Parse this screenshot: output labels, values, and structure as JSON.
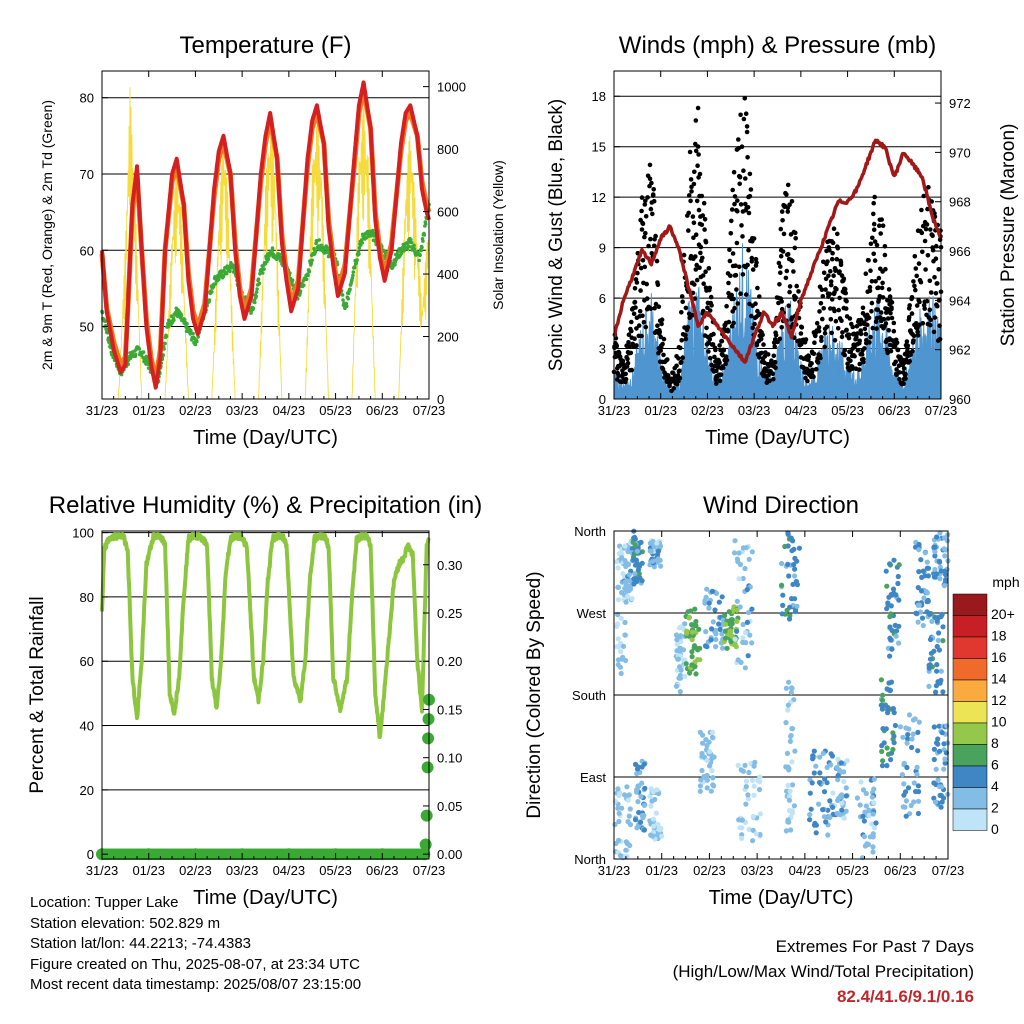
{
  "footer": {
    "location": "Location: Tupper Lake",
    "elevation": "Station elevation: 502.829 m",
    "latlon": "Station lat/lon: 44.2213; -74.4383",
    "created": "Figure created on Thu, 2025-08-07, at 23:34 UTC",
    "latest": "Most recent data timestamp: 2025/08/07 23:15:00",
    "extremes_title": "Extremes For Past 7 Days",
    "extremes_subtitle": "(High/Low/Max Wind/Total Precipitation)",
    "extremes_values": "82.4/41.6/9.1/0.16"
  },
  "colors": {
    "temp_2m": "#d42020",
    "temp_9m": "#f07820",
    "dewpoint": "#3aaa35",
    "solar": "#f5dc3c",
    "wind": "#4f95d0",
    "gust": "#000000",
    "pressure": "#a01818",
    "rh": "#8cc63f",
    "precip": "#3aaa35"
  },
  "chart_data": [
    {
      "type": "line",
      "title": "Temperature (F)",
      "xlabel": "Time (Day/UTC)",
      "ylabel": "2m & 9m T (Red, Orange) & 2m Td (Green)",
      "y2label": "Solar Insolation (Yellow)",
      "xticks": [
        "31/23",
        "01/23",
        "02/23",
        "03/23",
        "04/23",
        "05/23",
        "06/23",
        "07/23"
      ],
      "xlim": [
        0,
        7
      ],
      "ylim": [
        40.5,
        83.5
      ],
      "yticks": [
        50,
        60,
        70,
        80
      ],
      "y2lim": [
        0,
        1050
      ],
      "y2ticks": [
        0,
        200,
        400,
        600,
        800,
        1000
      ],
      "series": [
        {
          "name": "2m T",
          "x": [
            0,
            0.1,
            0.25,
            0.4,
            0.5,
            0.55,
            0.65,
            0.75,
            0.85,
            0.95,
            1.05,
            1.15,
            1.25,
            1.35,
            1.5,
            1.6,
            1.75,
            1.85,
            1.95,
            2.05,
            2.2,
            2.4,
            2.5,
            2.6,
            2.75,
            2.85,
            2.95,
            3.05,
            3.2,
            3.4,
            3.5,
            3.6,
            3.75,
            3.85,
            3.95,
            4.05,
            4.2,
            4.4,
            4.5,
            4.6,
            4.75,
            4.85,
            4.95,
            5.05,
            5.2,
            5.4,
            5.5,
            5.6,
            5.75,
            5.85,
            5.95,
            6.05,
            6.2,
            6.4,
            6.5,
            6.6,
            6.75,
            6.85,
            6.95,
            7.0
          ],
          "values": [
            60,
            52,
            47,
            44,
            45,
            52,
            66,
            71,
            60,
            50,
            45,
            42,
            46,
            60,
            70,
            72,
            66,
            56,
            51,
            49,
            52,
            68,
            73,
            75,
            70,
            60,
            54,
            51,
            54,
            70,
            75,
            78,
            72,
            61,
            56,
            52,
            55,
            72,
            77,
            79,
            74,
            63,
            58,
            54,
            57,
            72,
            79,
            82,
            76,
            64,
            59,
            56,
            60,
            74,
            78,
            79,
            75,
            68,
            65,
            64
          ]
        },
        {
          "name": "9m T",
          "x": [
            0,
            0.1,
            0.25,
            0.4,
            0.5,
            0.55,
            0.65,
            0.75,
            0.85,
            0.95,
            1.05,
            1.15,
            1.25,
            1.35,
            1.5,
            1.6,
            1.75,
            1.85,
            1.95,
            2.05,
            2.2,
            2.4,
            2.5,
            2.6,
            2.75,
            2.85,
            2.95,
            3.05,
            3.2,
            3.4,
            3.5,
            3.6,
            3.75,
            3.85,
            3.95,
            4.05,
            4.2,
            4.4,
            4.5,
            4.6,
            4.75,
            4.85,
            4.95,
            5.05,
            5.2,
            5.4,
            5.5,
            5.6,
            5.75,
            5.85,
            5.95,
            6.05,
            6.2,
            6.4,
            6.5,
            6.6,
            6.75,
            6.85,
            6.95,
            7.0
          ],
          "values": [
            59.5,
            52.5,
            48,
            45,
            46,
            52,
            65,
            70,
            60,
            51,
            46,
            43,
            47,
            60,
            69,
            71,
            66,
            57,
            52,
            50,
            53,
            67,
            72,
            74,
            70,
            61,
            55,
            52,
            55,
            69,
            74,
            77,
            72,
            62,
            57,
            53,
            56,
            71,
            76,
            78,
            74,
            64,
            59,
            55,
            58,
            71,
            78,
            81,
            76,
            65,
            60,
            57,
            61,
            73,
            77,
            78,
            75,
            69,
            66,
            65
          ]
        },
        {
          "name": "2m Td",
          "x": [
            0,
            0.2,
            0.4,
            0.6,
            0.8,
            1.0,
            1.2,
            1.4,
            1.6,
            1.8,
            2.0,
            2.2,
            2.4,
            2.6,
            2.8,
            3.0,
            3.2,
            3.4,
            3.6,
            3.8,
            4.0,
            4.2,
            4.4,
            4.6,
            4.8,
            5.0,
            5.2,
            5.4,
            5.6,
            5.8,
            6.0,
            6.2,
            6.4,
            6.6,
            6.8,
            7.0
          ],
          "values": [
            52,
            47,
            44,
            46,
            47,
            45,
            43,
            50,
            52,
            50,
            48,
            52,
            56,
            57,
            58,
            54,
            52,
            57,
            60,
            59,
            57,
            54,
            57,
            61,
            60,
            59,
            52,
            58,
            62,
            62,
            60,
            58,
            60,
            61,
            59,
            66
          ]
        },
        {
          "name": "Solar Insolation",
          "x": [
            0,
            0.35,
            0.5,
            0.6,
            0.7,
            0.85,
            1.35,
            1.5,
            1.6,
            1.7,
            1.85,
            2.35,
            2.5,
            2.6,
            2.7,
            2.85,
            3.35,
            3.5,
            3.6,
            3.7,
            3.85,
            4.35,
            4.5,
            4.6,
            4.7,
            4.85,
            5.35,
            5.5,
            5.6,
            5.7,
            5.85,
            6.35,
            6.5,
            6.6,
            6.7,
            6.85,
            7.0
          ],
          "values": [
            0,
            0,
            500,
            1000,
            700,
            0,
            0,
            550,
            780,
            600,
            0,
            0,
            600,
            850,
            650,
            0,
            0,
            700,
            900,
            750,
            0,
            0,
            750,
            920,
            760,
            0,
            0,
            800,
            960,
            780,
            0,
            0,
            700,
            880,
            650,
            300,
            600
          ]
        }
      ]
    },
    {
      "type": "scatter",
      "title": "Winds (mph) & Pressure (mb)",
      "xlabel": "Time (Day/UTC)",
      "ylabel": "Sonic Wind & Gust (Blue, Black)",
      "y2label": "Station Pressure (Maroon)",
      "xticks": [
        "31/23",
        "01/23",
        "02/23",
        "03/23",
        "04/23",
        "05/23",
        "06/23",
        "07/23"
      ],
      "xlim": [
        0,
        7
      ],
      "ylim": [
        0,
        19.5
      ],
      "yticks": [
        0,
        3,
        6,
        9,
        12,
        15,
        18
      ],
      "y2lim": [
        960,
        973.3
      ],
      "y2ticks": [
        960,
        962,
        964,
        966,
        968,
        970,
        972
      ],
      "series": [
        {
          "name": "Sonic Wind",
          "x": [
            0,
            0.2,
            0.4,
            0.6,
            0.8,
            1.0,
            1.2,
            1.4,
            1.6,
            1.8,
            2.0,
            2.2,
            2.4,
            2.6,
            2.8,
            3.0,
            3.2,
            3.4,
            3.6,
            3.8,
            4.0,
            4.2,
            4.4,
            4.6,
            4.8,
            5.0,
            5.2,
            5.4,
            5.6,
            5.8,
            6.0,
            6.2,
            6.4,
            6.6,
            6.8,
            7.0
          ],
          "values": [
            1.5,
            1.0,
            1.5,
            4.0,
            5.5,
            2.0,
            0.5,
            1.0,
            5.0,
            6.0,
            3.0,
            1.0,
            2.0,
            6.0,
            8.5,
            4.0,
            1.5,
            1.0,
            4.5,
            5.0,
            2.0,
            1.0,
            2.5,
            4.0,
            3.5,
            2.0,
            1.5,
            3.0,
            5.5,
            4.5,
            1.5,
            1.0,
            3.0,
            5.0,
            5.5,
            3.5
          ]
        },
        {
          "name": "Gust",
          "x": [
            0,
            0.2,
            0.4,
            0.6,
            0.8,
            1.0,
            1.2,
            1.4,
            1.6,
            1.8,
            2.0,
            2.2,
            2.4,
            2.6,
            2.8,
            3.0,
            3.2,
            3.4,
            3.6,
            3.8,
            4.0,
            4.2,
            4.4,
            4.6,
            4.8,
            5.0,
            5.2,
            5.4,
            5.6,
            5.8,
            6.0,
            6.2,
            6.4,
            6.6,
            6.8,
            7.0
          ],
          "values": [
            4,
            2,
            5,
            11,
            14,
            5,
            1,
            3,
            13,
            16,
            8,
            2,
            5,
            14,
            17,
            9,
            3,
            2,
            11,
            12,
            5,
            2,
            6,
            10,
            9,
            5,
            4,
            7,
            12,
            9,
            4,
            2,
            7,
            11,
            12,
            9
          ]
        },
        {
          "name": "Station Pressure",
          "x": [
            0,
            0.2,
            0.4,
            0.6,
            0.8,
            1.0,
            1.2,
            1.4,
            1.6,
            1.8,
            2.0,
            2.2,
            2.4,
            2.6,
            2.8,
            3.0,
            3.2,
            3.4,
            3.6,
            3.8,
            4.0,
            4.2,
            4.4,
            4.6,
            4.8,
            5.0,
            5.2,
            5.4,
            5.6,
            5.8,
            6.0,
            6.2,
            6.4,
            6.6,
            6.8,
            7.0
          ],
          "values": [
            962.5,
            964,
            965,
            966,
            965.5,
            966.5,
            967,
            966,
            964.5,
            963,
            963.5,
            963,
            962.5,
            962,
            961.5,
            962.5,
            963.5,
            963,
            963.5,
            962.5,
            964,
            965,
            966,
            967,
            968,
            968,
            968.5,
            969.5,
            970.5,
            970.2,
            969,
            970,
            969.5,
            969,
            967.5,
            966.5
          ]
        }
      ]
    },
    {
      "type": "line",
      "title": "Relative Humidity (%) & Precipitation (in)",
      "xlabel": "Time (Day/UTC)",
      "ylabel": "Percent & Total Rainfall",
      "xticks": [
        "31/23",
        "01/23",
        "02/23",
        "03/23",
        "04/23",
        "05/23",
        "06/23",
        "07/23"
      ],
      "xlim": [
        0,
        7
      ],
      "ylim": [
        -1.5,
        100.5
      ],
      "yticks": [
        0,
        20,
        40,
        60,
        80,
        100
      ],
      "y2lim": [
        -0.005,
        0.335
      ],
      "y2ticks": [
        0.0,
        0.05,
        0.1,
        0.15,
        0.2,
        0.25,
        0.3
      ],
      "series": [
        {
          "name": "Relative Humidity",
          "x": [
            0,
            0.05,
            0.15,
            0.3,
            0.45,
            0.55,
            0.65,
            0.75,
            0.85,
            0.95,
            1.1,
            1.25,
            1.35,
            1.45,
            1.55,
            1.65,
            1.75,
            1.85,
            1.95,
            2.1,
            2.25,
            2.35,
            2.45,
            2.55,
            2.65,
            2.75,
            2.85,
            2.95,
            3.1,
            3.25,
            3.35,
            3.45,
            3.55,
            3.65,
            3.75,
            3.85,
            3.95,
            4.1,
            4.25,
            4.35,
            4.45,
            4.55,
            4.65,
            4.75,
            4.85,
            4.95,
            5.1,
            5.25,
            5.35,
            5.45,
            5.55,
            5.65,
            5.75,
            5.85,
            5.95,
            6.1,
            6.25,
            6.35,
            6.45,
            6.55,
            6.65,
            6.75,
            6.85,
            6.95,
            7.0
          ],
          "values": [
            75,
            95,
            98,
            99,
            99,
            95,
            55,
            42,
            60,
            90,
            99,
            99,
            96,
            50,
            44,
            55,
            80,
            98,
            99,
            99,
            96,
            55,
            45,
            60,
            88,
            98,
            99,
            99,
            96,
            55,
            48,
            60,
            85,
            98,
            99,
            99,
            96,
            55,
            48,
            60,
            85,
            98,
            99,
            99,
            96,
            55,
            45,
            55,
            80,
            98,
            99,
            99,
            96,
            50,
            36,
            60,
            85,
            90,
            92,
            96,
            93,
            60,
            45,
            96,
            98
          ]
        },
        {
          "name": "Precipitation",
          "x": [
            0,
            1,
            2,
            3,
            4,
            5,
            6,
            6.9,
            6.93,
            6.95,
            6.97,
            6.98,
            6.99,
            7.0
          ],
          "values": [
            0,
            0,
            0,
            0,
            0,
            0,
            0,
            0.0,
            0.01,
            0.04,
            0.09,
            0.12,
            0.14,
            0.16
          ]
        }
      ]
    },
    {
      "type": "scatter",
      "title": "Wind Direction",
      "xlabel": "Time (Day/UTC)",
      "ylabel": "Direction (Colored By Speed)",
      "xticks": [
        "31/23",
        "01/23",
        "02/23",
        "03/23",
        "04/23",
        "05/23",
        "06/23",
        "07/23"
      ],
      "xlim": [
        0,
        7
      ],
      "ylim": [
        0,
        360
      ],
      "ytick_values": [
        0,
        90,
        180,
        270,
        360
      ],
      "yticks": [
        "North",
        "East",
        "South",
        "West",
        "North"
      ],
      "legend": {
        "title": "mph",
        "labels": [
          "20+",
          "18",
          "16",
          "14",
          "12",
          "10",
          "8",
          "6",
          "4",
          "2",
          "0"
        ],
        "colors": [
          "#99191c",
          "#c62026",
          "#e0382f",
          "#f06a2b",
          "#fbaa3f",
          "#ece355",
          "#94c84a",
          "#4aa35c",
          "#3f86c5",
          "#83bce4",
          "#bfe3f7"
        ]
      },
      "series": [
        {
          "name": "Direction",
          "x": [
            0.1,
            0.3,
            0.5,
            0.8,
            1.3,
            1.6,
            1.9,
            2.5,
            2.8,
            3.2,
            3.6,
            4.3,
            4.7,
            5.5,
            5.8,
            6.2,
            6.5,
            6.8
          ],
          "values": [
            320,
            340,
            330,
            300,
            280,
            260,
            250,
            270,
            260,
            60,
            330,
            320,
            60,
            70,
            260,
            100,
            200,
            230
          ]
        }
      ]
    }
  ]
}
